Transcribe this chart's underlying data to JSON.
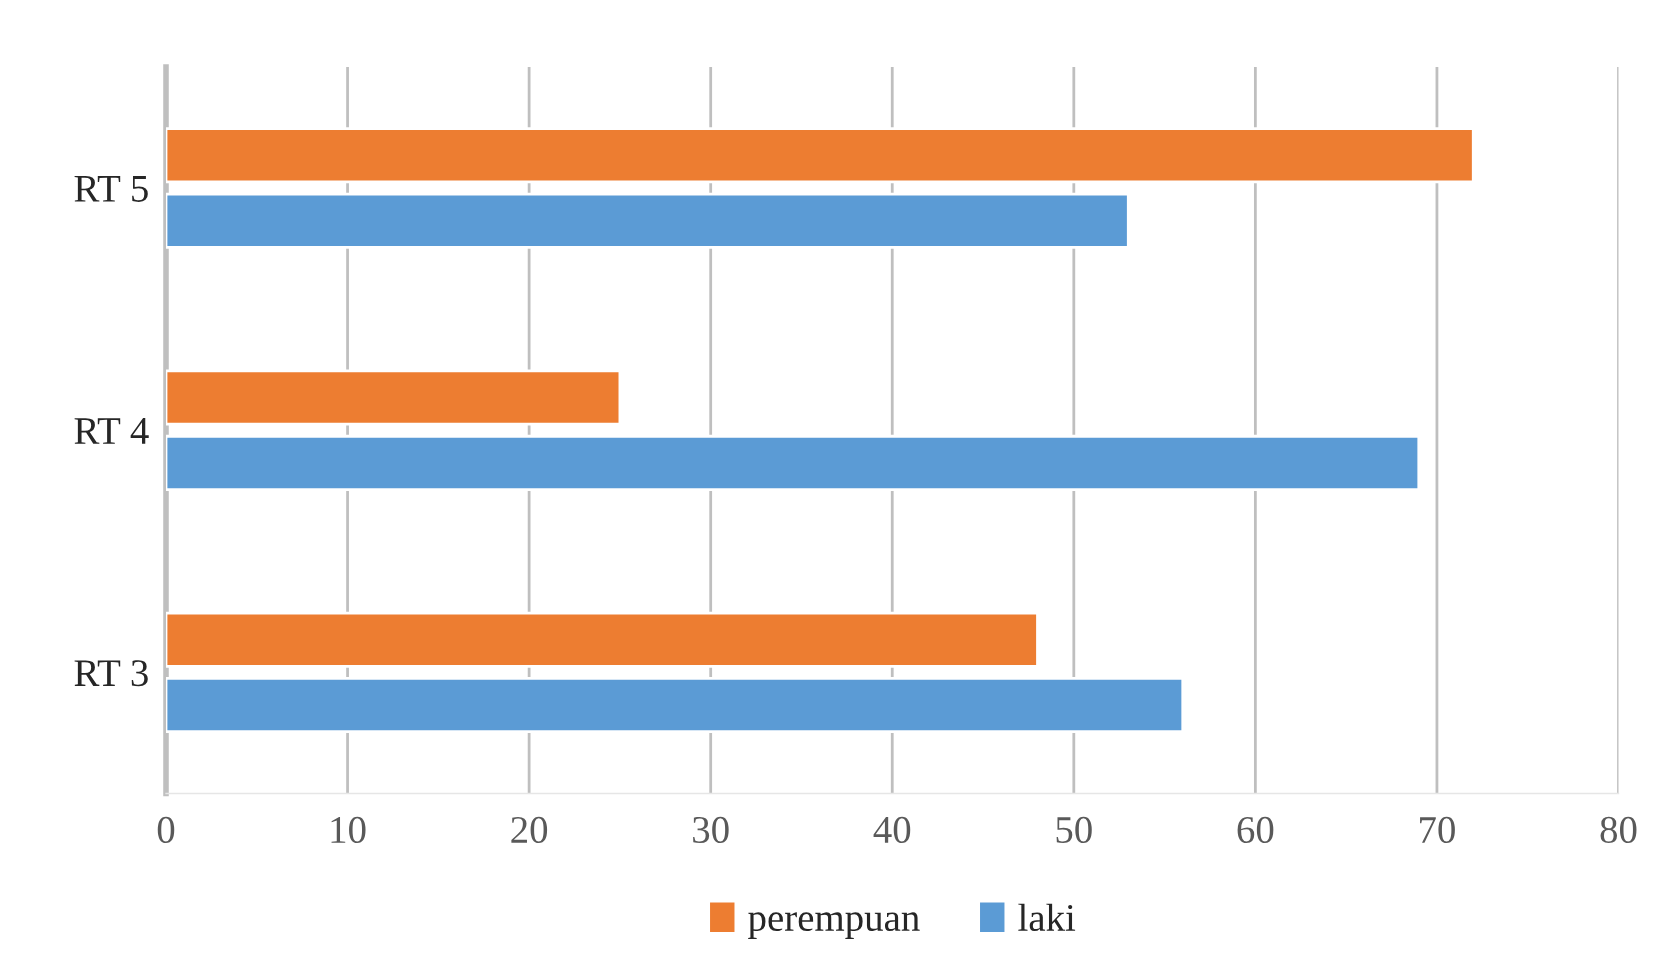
{
  "chart_data": {
    "type": "bar",
    "orientation": "horizontal",
    "categories": [
      "RT 5",
      "RT 4",
      "RT 3"
    ],
    "series": [
      {
        "name": "perempuan",
        "color": "#ed7d31",
        "values": [
          72,
          25,
          48
        ]
      },
      {
        "name": "laki",
        "color": "#5b9bd5",
        "values": [
          53,
          69,
          56
        ]
      }
    ],
    "xlim": [
      0,
      80
    ],
    "xticks": [
      0,
      10,
      20,
      30,
      40,
      50,
      60,
      70,
      80
    ],
    "grid": "x",
    "legend": "bottom"
  }
}
